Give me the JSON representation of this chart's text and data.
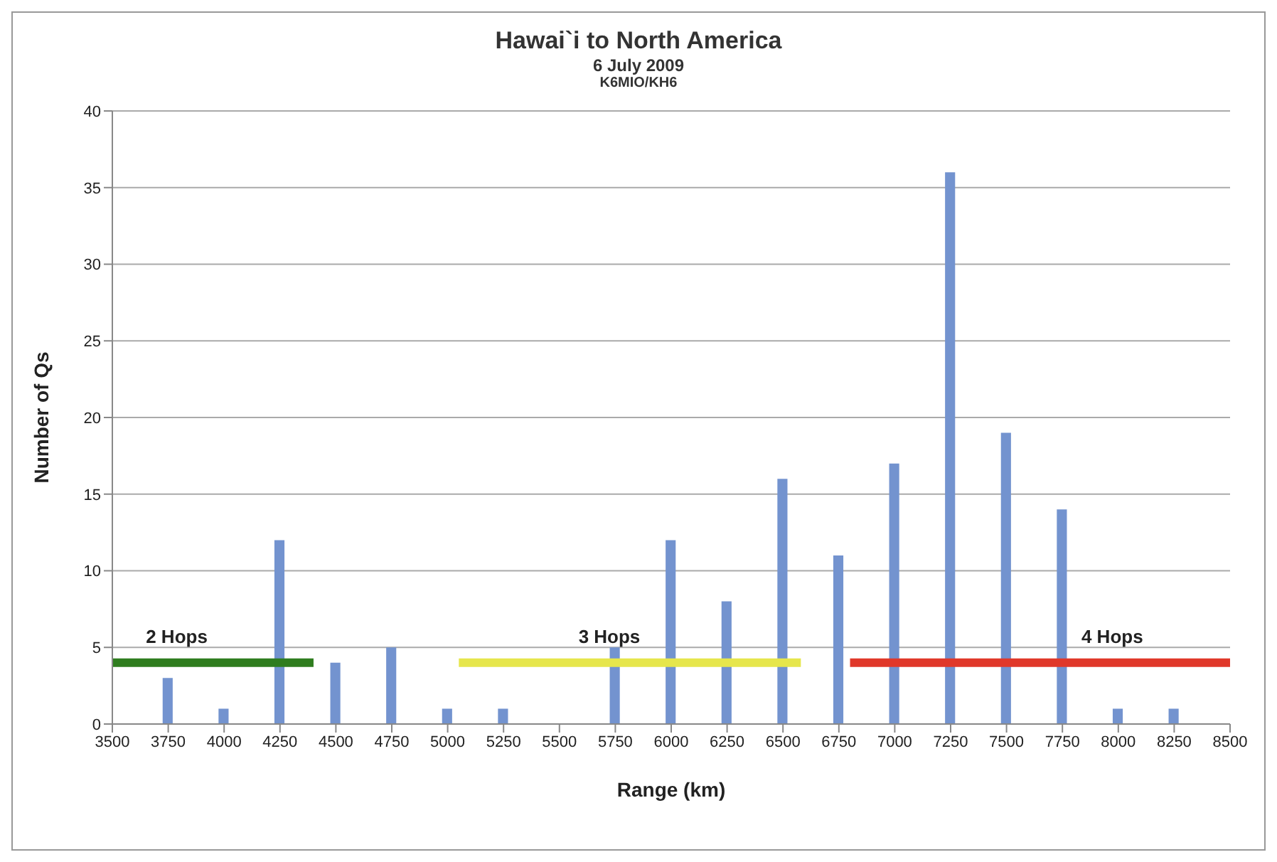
{
  "chart_data": {
    "type": "bar",
    "title": "Hawai`i to North America",
    "subtitle": "6 July 2009\nK6MIO/KH6",
    "xlabel": "Range (km)",
    "ylabel": "Number of Qs",
    "x": [
      3750,
      4000,
      4250,
      4500,
      4750,
      5000,
      5250,
      5500,
      5750,
      6000,
      6250,
      6500,
      6750,
      7000,
      7250,
      7500,
      7750,
      8000,
      8250
    ],
    "series": [
      {
        "color": "#7393cf",
        "values": [
          3,
          1,
          12,
          4,
          5,
          1,
          1,
          0,
          5,
          12,
          8,
          16,
          11,
          17,
          36,
          19,
          14,
          1,
          1
        ]
      },
      {
        "type": "line",
        "name": "2 Hops",
        "color": "#2f7d1f",
        "x": [
          3500,
          4400
        ],
        "values": [
          4,
          4
        ]
      },
      {
        "type": "line",
        "name": "3 Hops",
        "color": "#e6e64c",
        "x": [
          5050,
          6580
        ],
        "values": [
          4,
          4
        ]
      },
      {
        "type": "line",
        "name": "4 Hops",
        "color": "#e0382a",
        "x": [
          6800,
          8500
        ],
        "values": [
          4,
          4
        ]
      }
    ],
    "xlim": [
      3500,
      8500
    ],
    "xticks": [
      3500,
      3750,
      4000,
      4250,
      4500,
      4750,
      5000,
      5250,
      5500,
      5750,
      6000,
      6250,
      6500,
      6750,
      7000,
      7250,
      7500,
      7750,
      8000,
      8250,
      8500
    ],
    "ylim": [
      0,
      40
    ],
    "yticks": [
      0,
      5,
      10,
      15,
      20,
      25,
      30,
      35,
      40
    ],
    "grid": "y",
    "legend": false
  }
}
